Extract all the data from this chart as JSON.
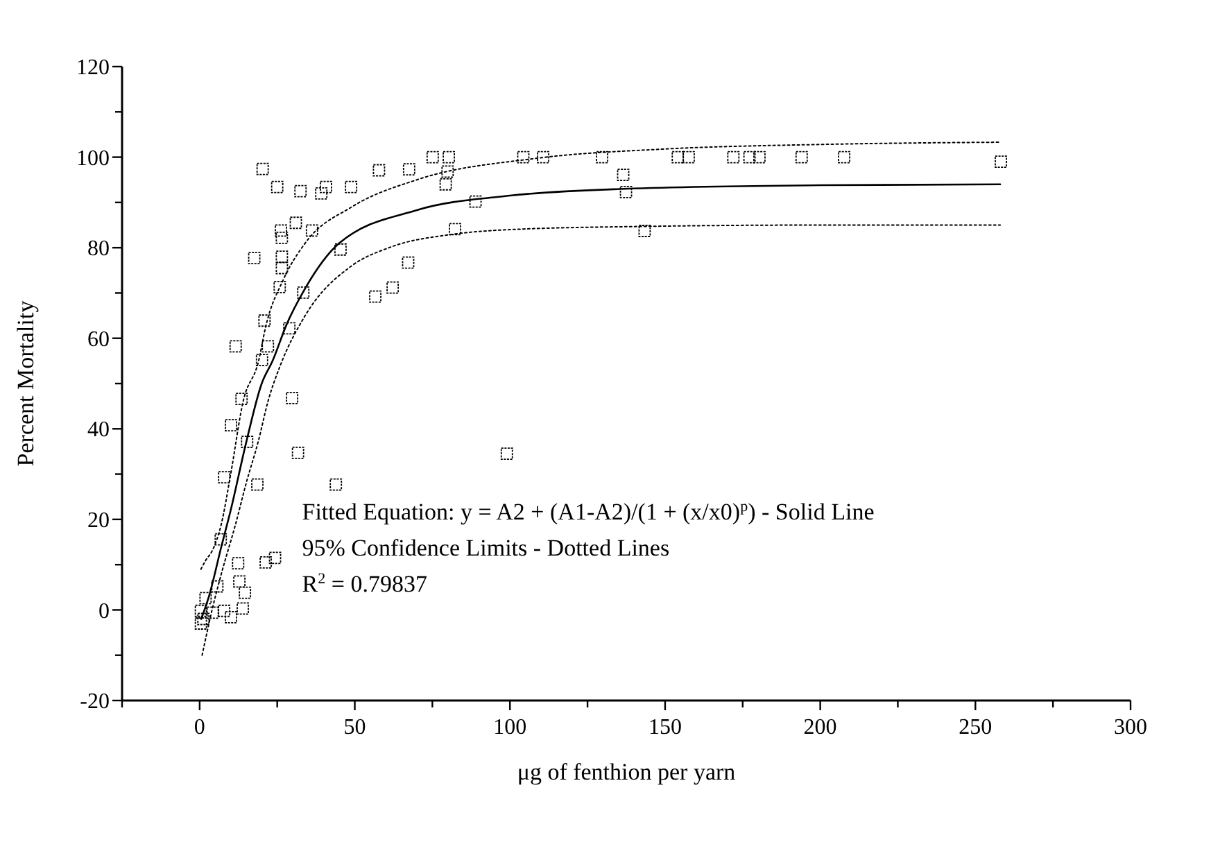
{
  "chart_data": {
    "type": "scatter",
    "xlabel": "μg of fenthion per yarn",
    "ylabel": "Percent Mortality",
    "xlim": [
      -25,
      300
    ],
    "ylim": [
      -20,
      120
    ],
    "xticks": [
      {
        "value": -25,
        "label": null
      },
      0,
      {
        "value": 25,
        "label": null
      },
      50,
      {
        "value": 75,
        "label": null
      },
      100,
      {
        "value": 125,
        "label": null
      },
      150,
      {
        "value": 175,
        "label": null
      },
      200,
      {
        "value": 225,
        "label": null
      },
      250,
      {
        "value": 275,
        "label": null
      },
      300
    ],
    "yticks": [
      -20,
      {
        "value": -10,
        "label": null
      },
      0,
      {
        "value": 10,
        "label": null
      },
      20,
      {
        "value": 30,
        "label": null
      },
      40,
      {
        "value": 50,
        "label": null
      },
      60,
      {
        "value": 70,
        "label": null
      },
      80,
      {
        "value": 90,
        "label": null
      },
      100,
      {
        "value": 110,
        "label": null
      },
      120
    ],
    "grid": false,
    "annotations": [
      "Fitted Equation: y = A2 + (A1-A2)/(1 + (x/x0)$^{p}$) - Solid Line",
      "95% Confidence Limits - Dotted Lines",
      "R$^{2}$ = 0.79837"
    ],
    "series": [
      {
        "marker": "square",
        "color": "#000000",
        "x": [
          75.1,
          80.3,
          104.3,
          110.7,
          129.7,
          154.1,
          157.6,
          172,
          177.2,
          180.4,
          194,
          207.7,
          258.2,
          67.5,
          79.9,
          79.3,
          136.5,
          137.4,
          88.9,
          82.3,
          143.4,
          67.2,
          20.3,
          57.8,
          25,
          32.5,
          39.2,
          40.7,
          48.8,
          31,
          26.2,
          26.5,
          36.2,
          45.4,
          17.6,
          26.5,
          26.5,
          25.8,
          33.4,
          56.6,
          62.2,
          20.9,
          28.9,
          11.6,
          22,
          20.1,
          13.5,
          29.8,
          10.1,
          15.3,
          31.7,
          7.9,
          18.6,
          43.9,
          99,
          6.8,
          24.3,
          21.3,
          12.4,
          12.8,
          14.6,
          5.7,
          1.9,
          13.9,
          0.4,
          4.2,
          7.9,
          10.1,
          1.2,
          0.4
        ],
        "values": [
          100,
          100,
          100,
          100,
          100,
          100,
          100,
          100,
          100,
          100,
          100,
          100,
          99,
          97.3,
          96.8,
          94,
          96.1,
          92.3,
          90.2,
          84.1,
          83.7,
          76.7,
          97.4,
          97.1,
          93.4,
          92.5,
          92,
          93.4,
          93.4,
          85.5,
          83.8,
          82.2,
          83.8,
          79.6,
          77.7,
          78,
          75.5,
          71.3,
          70.1,
          69.2,
          71.2,
          63.9,
          62.2,
          58.2,
          58.2,
          55.2,
          46.6,
          46.8,
          40.8,
          37.1,
          34.7,
          29.3,
          27.7,
          27.7,
          34.5,
          15.6,
          11.5,
          10.5,
          10.3,
          6.3,
          3.8,
          5.2,
          2.6,
          0.3,
          -0.2,
          -0.6,
          -0.2,
          -1.6,
          -2,
          -3
        ]
      },
      {
        "type": "line",
        "line_style": "solid",
        "color": "#000000",
        "x": [
          0.5,
          3,
          7,
          10,
          15,
          20,
          23.5,
          28,
          34,
          45,
          70,
          100,
          137,
          200,
          258
        ],
        "values": [
          -2,
          3,
          14,
          22,
          37,
          50,
          55,
          63,
          71,
          81,
          88.3,
          91.5,
          93,
          93.8,
          94
        ]
      },
      {
        "type": "line",
        "line_style": "dotted",
        "color": "#000000",
        "x": [
          0.4,
          2,
          4,
          7,
          10,
          14,
          19,
          21.3,
          27,
          34,
          49,
          70,
          108,
          150,
          200,
          258
        ],
        "values": [
          9,
          11,
          13,
          19,
          30,
          46,
          55,
          62.6,
          73,
          81,
          89,
          95,
          99.7,
          101.8,
          102.8,
          103.3
        ]
      },
      {
        "type": "line",
        "line_style": "dotted",
        "color": "#000000",
        "x": [
          0.8,
          4,
          7,
          11.6,
          15,
          19,
          22,
          26,
          34,
          49,
          61,
          82,
          100,
          143,
          200,
          258
        ],
        "values": [
          -10,
          0,
          8,
          19,
          28,
          37.5,
          46,
          54,
          65,
          76,
          80,
          83,
          84,
          84.7,
          85,
          85
        ]
      }
    ]
  }
}
